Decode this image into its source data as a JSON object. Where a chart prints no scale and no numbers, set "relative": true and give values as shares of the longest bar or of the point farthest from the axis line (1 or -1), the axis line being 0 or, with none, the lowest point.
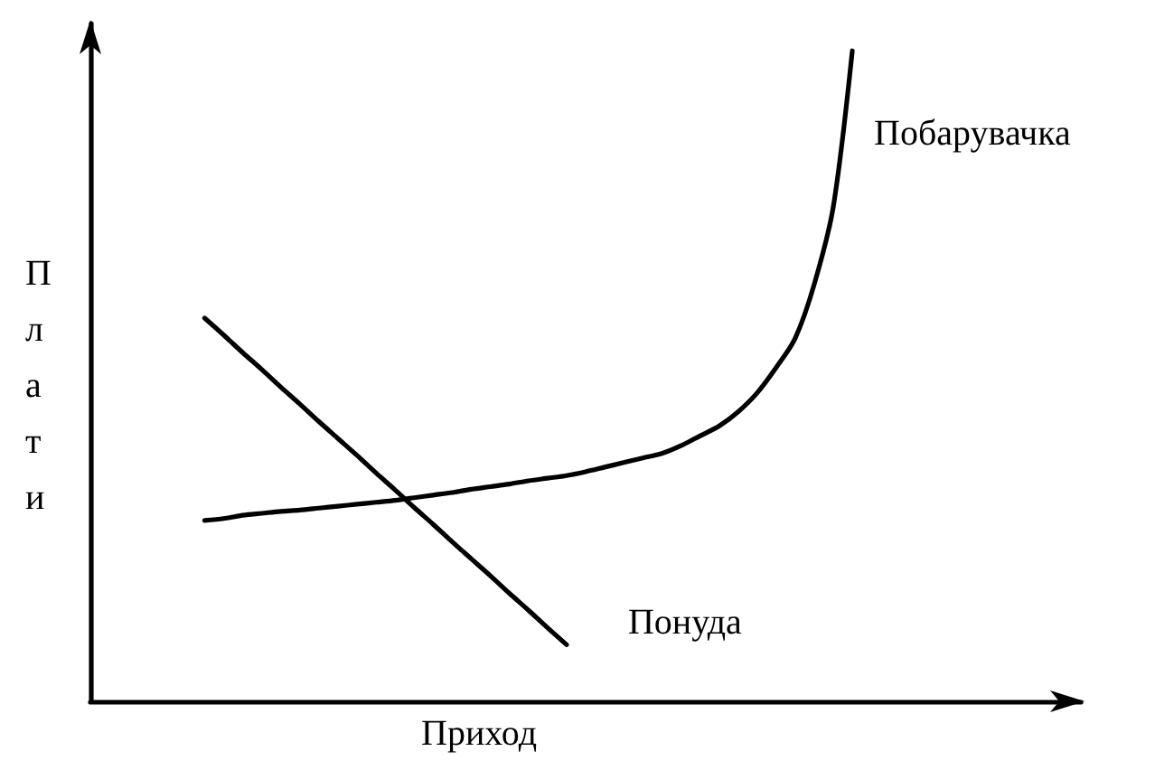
{
  "chart_data": {
    "type": "line",
    "relative": true,
    "xlabel": "Приход",
    "ylabel": "Плати",
    "line_style": "solid",
    "categories": [
      null,
      null,
      null,
      null,
      null,
      null,
      null,
      null,
      null,
      null,
      null,
      null,
      null,
      null,
      null,
      null,
      null,
      null,
      null,
      null,
      null,
      null,
      null,
      null,
      null,
      null,
      null,
      null,
      null,
      null,
      null,
      null,
      null,
      null,
      null,
      null,
      null,
      null,
      null,
      null,
      null,
      null,
      null,
      null,
      null,
      null,
      null,
      null,
      null,
      null,
      null,
      null,
      null
    ],
    "series": [
      {
        "name": "Побарувачка",
        "color": "#000000",
        "values": [
          null,
          null,
          null,
          null,
          null,
          null,
          0.278,
          0.281,
          0.286,
          0.289,
          0.292,
          0.294,
          0.297,
          0.3,
          0.303,
          0.306,
          0.309,
          0.313,
          0.317,
          0.321,
          0.326,
          0.33,
          0.334,
          0.339,
          0.343,
          0.347,
          0.353,
          0.36,
          0.367,
          0.374,
          0.381,
          0.393,
          0.408,
          0.423,
          0.445,
          0.474,
          0.513,
          0.558,
          0.641,
          0.76,
          1.0,
          null,
          null,
          null,
          null,
          null,
          null,
          null,
          null,
          null,
          null,
          null,
          null
        ]
      },
      {
        "name": "Понуда",
        "color": "#000000",
        "values": [
          null,
          null,
          null,
          null,
          null,
          null,
          0.589,
          0.563,
          0.536,
          0.51,
          0.483,
          0.457,
          0.43,
          0.404,
          0.378,
          0.351,
          0.325,
          0.298,
          0.272,
          0.245,
          0.219,
          0.193,
          0.166,
          0.14,
          0.113,
          0.087,
          null,
          null,
          null,
          null,
          null,
          null,
          null,
          null,
          null,
          null,
          null,
          null,
          null,
          null,
          null,
          null,
          null,
          null,
          null,
          null,
          null,
          null,
          null,
          null,
          null,
          null,
          null
        ]
      }
    ]
  }
}
